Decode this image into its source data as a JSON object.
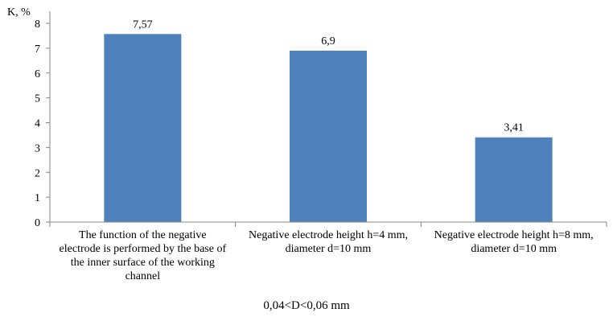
{
  "chart_data": {
    "type": "bar",
    "ylabel": "K, %",
    "xlabel": "0,04<D<0,06 mm",
    "categories": [
      "The function of the negative\nelectrode is performed by the base of\nthe inner surface of the working\nchannel",
      "Negative electrode height h=4 mm,\ndiameter d=10 mm",
      "Negative electrode height h=8 mm,\ndiameter d=10 mm"
    ],
    "values": [
      7.57,
      6.9,
      3.41
    ],
    "value_labels": [
      "7,57",
      "6,9",
      "3,41"
    ],
    "ylim": [
      0,
      8
    ],
    "yticks": [
      0,
      1,
      2,
      3,
      4,
      5,
      6,
      7,
      8
    ],
    "ytick_labels": [
      "0",
      "1",
      "2",
      "3",
      "4",
      "5",
      "6",
      "7",
      "8"
    ],
    "bar_color": "#4f81bd",
    "grid": false,
    "legend": "none"
  }
}
